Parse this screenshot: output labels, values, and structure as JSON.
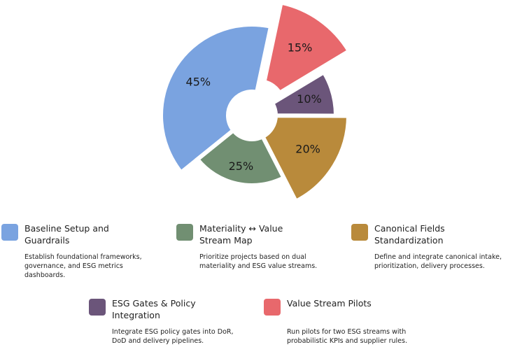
{
  "chart_data": {
    "type": "pie",
    "categories": [
      "Baseline Setup and Guardrails",
      "Materiality ↔ Value Stream Map",
      "Canonical Fields Standardization",
      "ESG Gates & Policy Integration",
      "Value Stream Pilots"
    ],
    "descriptions": [
      "Establish foundational frameworks, governance, and ESG metrics dashboards.",
      "Prioritize projects based on dual materiality and ESG value streams.",
      "Define and integrate canonical intake, prioritization, delivery processes.",
      "Integrate ESG policy gates into DoR, DoD and delivery pipelines.",
      "Run pilots for two ESG streams with probabilistic KPIs and supplier rules."
    ],
    "values": [
      45,
      25,
      20,
      10,
      15
    ],
    "value_labels": [
      "45%",
      "25%",
      "20%",
      "10%",
      "15%"
    ],
    "colors": [
      "#7aa3e0",
      "#718f72",
      "#b98a3b",
      "#6b557a",
      "#e8686c"
    ]
  }
}
